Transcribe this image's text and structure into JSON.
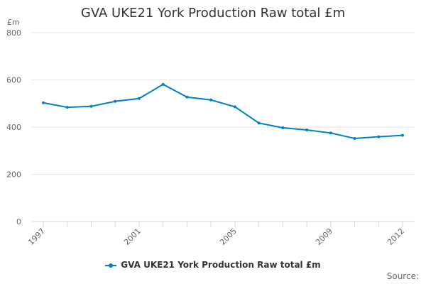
{
  "chart_data": {
    "type": "line",
    "title": "GVA UKE21 York Production Raw total £m",
    "ylabel": "£m",
    "xlabel": "",
    "ylim": [
      0,
      800
    ],
    "yticks": [
      0,
      200,
      400,
      600,
      800
    ],
    "xticks": [
      1997,
      2001,
      2005,
      2009,
      2012
    ],
    "x": [
      1997,
      1998,
      1999,
      2000,
      2001,
      2002,
      2003,
      2004,
      2005,
      2006,
      2007,
      2008,
      2009,
      2010,
      2011,
      2012
    ],
    "series": [
      {
        "name": "GVA UKE21 York Production Raw total £m",
        "color": "#0080c6",
        "values": [
          503,
          484,
          488,
          509,
          521,
          581,
          527,
          515,
          486,
          417,
          397,
          388,
          375,
          352,
          359,
          365
        ]
      }
    ],
    "grid": true,
    "legend": "bottom-center",
    "source_label": "Source:"
  }
}
